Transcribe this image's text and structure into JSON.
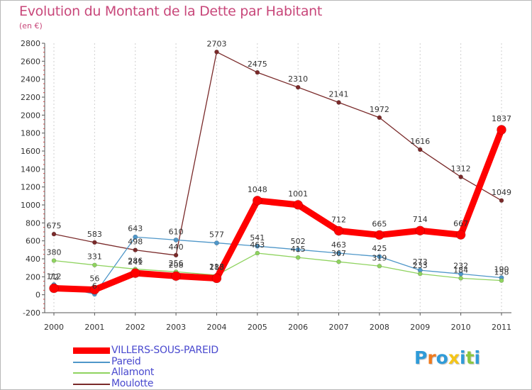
{
  "chart_data": {
    "type": "line",
    "title": "Evolution du Montant de la Dette par Habitant",
    "ylabel": "(en €)",
    "xlabel": "",
    "ylim": [
      -200,
      2800
    ],
    "yticks": [
      -200,
      0,
      200,
      400,
      600,
      800,
      1000,
      1200,
      1400,
      1600,
      1800,
      2000,
      2200,
      2400,
      2600,
      2800
    ],
    "categories": [
      "2000",
      "2001",
      "2002",
      "2003",
      "2004",
      "2005",
      "2006",
      "2007",
      "2008",
      "2009",
      "2010",
      "2011"
    ],
    "grid": "vertical",
    "series": [
      {
        "name": "Moulotte",
        "color": "#7a2a2a",
        "values": [
          675,
          583,
          498,
          440,
          2703,
          2475,
          2310,
          2141,
          1972,
          1616,
          1312,
          1049
        ]
      },
      {
        "name": "Pareid",
        "color": "#4f97c9",
        "values": [
          112,
          6,
          643,
          610,
          577,
          541,
          502,
          463,
          425,
          273,
          232,
          190
        ]
      },
      {
        "name": "Allamont",
        "color": "#8fd35f",
        "values": [
          380,
          331,
          286,
          256,
          218,
          463,
          415,
          367,
          319,
          233,
          184,
          158
        ]
      },
      {
        "name": "VILLERS-SOUS-PAREID",
        "color": "#ff0000",
        "values": [
          72,
          56,
          241,
          208,
          183,
          1048,
          1001,
          712,
          665,
          714,
          667,
          1837
        ]
      }
    ]
  },
  "legend": [
    {
      "label": "VILLERS-SOUS-PAREID",
      "color": "#ff0000"
    },
    {
      "label": "Pareid",
      "color": "#4f97c9"
    },
    {
      "label": "Allamont",
      "color": "#8fd35f"
    },
    {
      "label": "Moulotte",
      "color": "#7a2a2a"
    }
  ],
  "logo": {
    "text": "Proxiti",
    "letters": [
      {
        "char": "P",
        "color": "#2f9bd8"
      },
      {
        "char": "r",
        "color": "#f07a1d"
      },
      {
        "char": "o",
        "color": "#2f9bd8"
      },
      {
        "char": "x",
        "color": "#f5c518"
      },
      {
        "char": "i",
        "color": "#2f9bd8"
      },
      {
        "char": "t",
        "color": "#8cc63f"
      },
      {
        "char": "i",
        "color": "#2f9bd8"
      }
    ]
  }
}
